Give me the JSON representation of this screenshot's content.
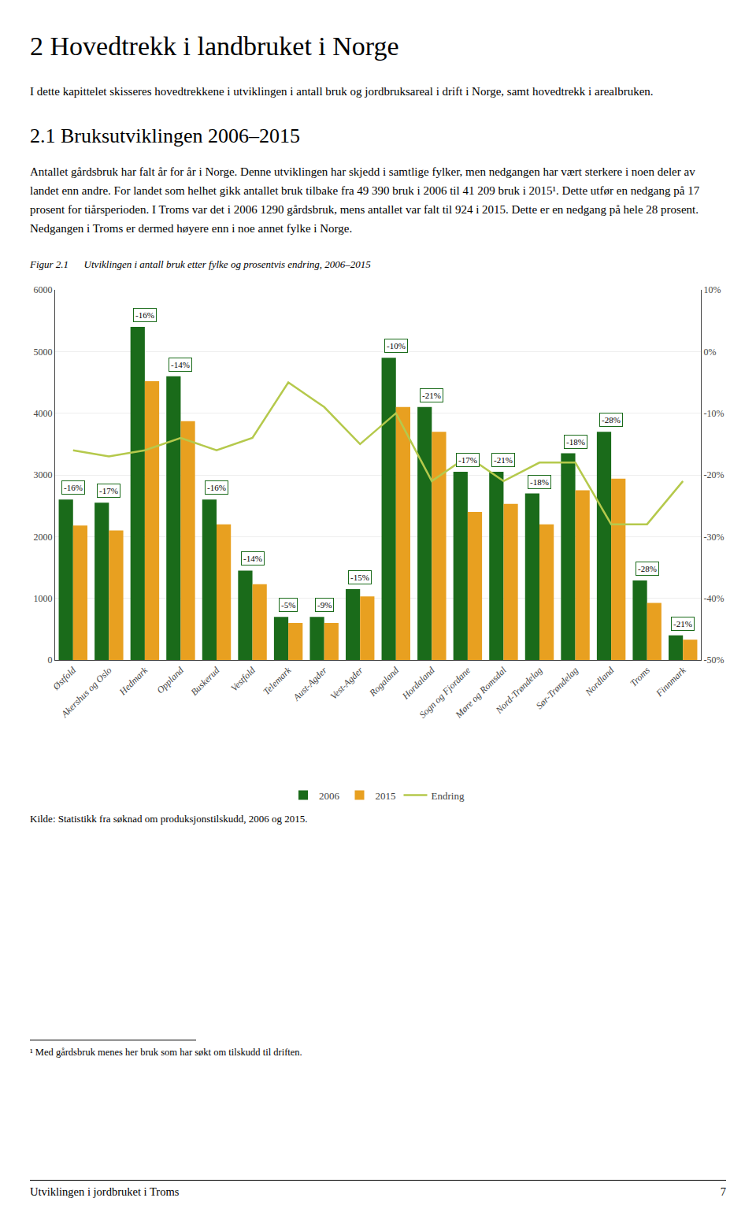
{
  "page_title": "2  Hovedtrekk i landbruket i Norge",
  "intro_text": "I dette kapittelet skisseres hovedtrekkene i utviklingen i antall bruk og jordbruksareal i drift i Norge, samt hovedtrekk i arealbruken.",
  "section_title": "2.1  Bruksutviklingen 2006–2015",
  "body_text": "Antallet gårdsbruk har falt år for år i Norge. Denne utviklingen har skjedd i samtlige fylker, men nedgangen har vært sterkere i noen deler av landet enn andre. For landet som helhet gikk antallet bruk tilbake fra 49 390 bruk i 2006 til 41 209 bruk i 2015¹. Dette utfør en nedgang på 17 prosent for tiårsperioden. I Troms var det i 2006 1290 gårdsbruk, mens antallet var falt til 924 i 2015. Dette er en nedgang på hele 28 prosent. Nedgangen i Troms er dermed høyere enn i noe annet fylke i Norge.",
  "source": "Kilde: Statistikk fra søknad om produksjonstilskudd, 2006 og 2015.",
  "footnote": "¹ Med gårdsbruk menes her bruk som har søkt om tilskudd til driften.",
  "footer": "Utviklingen i jordbruket i Troms",
  "footer_page": "7",
  "chart_data": {
    "type": "bar",
    "title": "Figur 2.1      Utviklingen i antall bruk etter fylke og prosentvis endring, 2006–2015",
    "categories": [
      "Østfold",
      "Akershus og Oslo",
      "Hedmark",
      "Oppland",
      "Buskerud",
      "Vestfold",
      "Telemark",
      "Aust-Agder",
      "Vest-Agder",
      "Rogaland",
      "Hordaland",
      "Sogn og Fjordane",
      "Møre og Romsdal",
      "Nord-Trøndelag",
      "Sør-Trøndelag",
      "Nordland",
      "Troms",
      "Finnmark"
    ],
    "series": [
      {
        "name": "2006",
        "color": "#1a6b1a",
        "values": [
          2600,
          2550,
          5400,
          4600,
          2600,
          1450,
          700,
          700,
          1150,
          4900,
          4100,
          3050,
          3050,
          2700,
          3350,
          3700,
          1290,
          400
        ]
      },
      {
        "name": "2015",
        "color": "#e8a020",
        "values": [
          2180,
          2100,
          4520,
          3870,
          2200,
          1230,
          600,
          600,
          1030,
          4100,
          3700,
          2400,
          2530,
          2200,
          2750,
          2940,
          924,
          330
        ]
      },
      {
        "name": "Endring",
        "type": "line",
        "axis": "y2",
        "color": "#b5c94c",
        "values": [
          -16,
          -17,
          -16,
          -14,
          -16,
          -14,
          -5,
          -9,
          -15,
          -10,
          -21,
          -17,
          -21,
          -18,
          -18,
          -28,
          -28,
          -21
        ]
      }
    ],
    "annotations": [
      "-16%",
      "-17%",
      "-16%",
      "-14%",
      "-16%",
      "-14%",
      "-5%",
      "-9%",
      "-15%",
      "-10%",
      "-21%",
      "-17%",
      "-21%",
      "-18%",
      "-18%",
      "-28%",
      "-28%",
      "-21%"
    ],
    "ylim": [
      0,
      6000
    ],
    "yticks": [
      0,
      1000,
      2000,
      3000,
      4000,
      5000,
      6000
    ],
    "y2lim": [
      -50,
      10
    ],
    "y2ticks": [
      {
        "value": -50,
        "label": "-50%"
      },
      {
        "value": -40,
        "label": "-40%"
      },
      {
        "value": -30,
        "label": "-30%"
      },
      {
        "value": -20,
        "label": "-20%"
      },
      {
        "value": -10,
        "label": "-10%"
      },
      {
        "value": 0,
        "label": "0%"
      },
      {
        "value": 10,
        "label": "10%"
      }
    ],
    "grid": true,
    "legend": "bottom"
  }
}
